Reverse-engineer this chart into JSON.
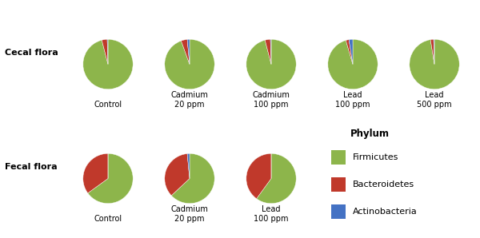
{
  "colors": {
    "Firmicutes": "#8db54b",
    "Bacteroidetes": "#c0392b",
    "Actinobacteria": "#4472c4"
  },
  "cecal_flora": {
    "labels": [
      "Control",
      "Cadmium\n20 ppm",
      "Cadmium\n100 ppm",
      "Lead\n100 ppm",
      "Lead\n500 ppm"
    ],
    "data": [
      [
        96.0,
        3.5,
        0.5
      ],
      [
        94.5,
        4.0,
        1.5
      ],
      [
        96.0,
        3.5,
        0.5
      ],
      [
        95.5,
        2.0,
        2.5
      ],
      [
        97.5,
        2.0,
        0.5
      ]
    ]
  },
  "fecal_flora": {
    "labels": [
      "Control",
      "Cadmium\n20 ppm",
      "Lead\n100 ppm"
    ],
    "data": [
      [
        65.0,
        35.0,
        0.0
      ],
      [
        63.0,
        35.5,
        1.5
      ],
      [
        60.0,
        40.0,
        0.0
      ]
    ]
  },
  "phylum_order": [
    "Firmicutes",
    "Bacteroidetes",
    "Actinobacteria"
  ],
  "row_labels": [
    "Cecal flora",
    "Fecal flora"
  ],
  "legend_title": "Phylum",
  "legend_entries": [
    "Firmicutes",
    "Bacteroidetes",
    "Actinobacteria"
  ],
  "background_color": "#ffffff"
}
